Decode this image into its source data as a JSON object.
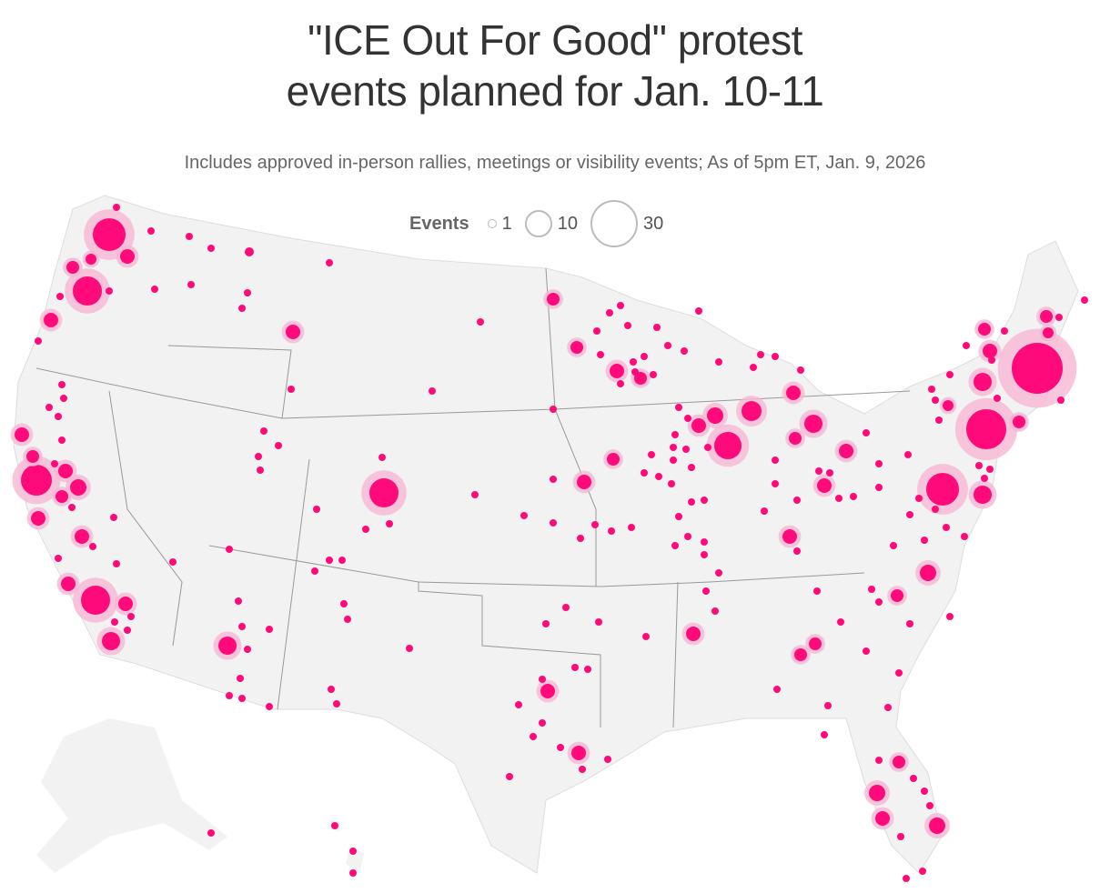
{
  "title_line1": "\"ICE Out For Good\" protest",
  "title_line2": "events planned for Jan. 10-11",
  "subtitle": "Includes approved in-person rallies, meetings or visibility events; As of 5pm ET, Jan. 9, 2026",
  "legend": {
    "label": "Events",
    "items": [
      {
        "value": "1"
      },
      {
        "value": "10"
      },
      {
        "value": "30"
      }
    ]
  },
  "colors": {
    "bubble": "#ff0a7a",
    "halo": "#f7b6d3",
    "land": "#f2f2f2",
    "border": "#888888"
  }
}
